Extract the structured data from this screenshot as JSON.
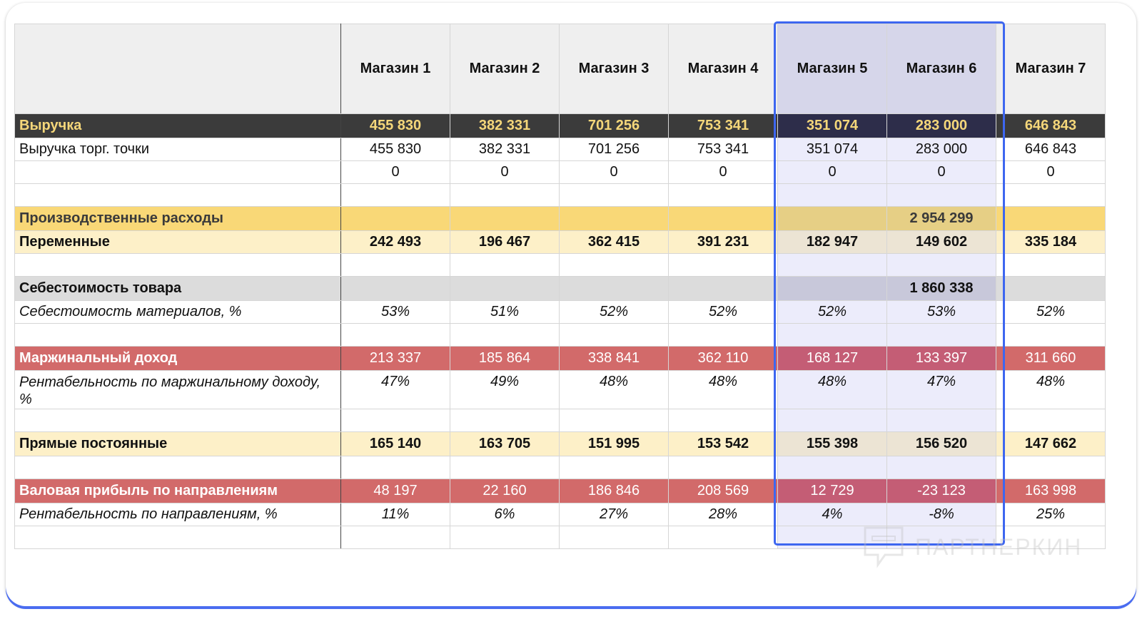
{
  "stores": [
    "Магазин 1",
    "Магазин 2",
    "Магазин 3",
    "Магазин 4",
    "Магазин 5",
    "Магазин 6",
    "Магазин 7"
  ],
  "rows": {
    "revenue": {
      "label": "Выручка",
      "values": [
        "455 830",
        "382 331",
        "701 256",
        "753 341",
        "351 074",
        "283 000",
        "646 843"
      ]
    },
    "store_revenue": {
      "label": "Выручка торг. точки",
      "values": [
        "455 830",
        "382 331",
        "701 256",
        "753 341",
        "351 074",
        "283 000",
        "646 843"
      ]
    },
    "zero": {
      "label": "",
      "values": [
        "0",
        "0",
        "0",
        "0",
        "0",
        "0",
        "0"
      ]
    },
    "production": {
      "label": "Производственные расходы",
      "total": "2 954 299"
    },
    "variable": {
      "label": "Переменные",
      "values": [
        "242 493",
        "196 467",
        "362 415",
        "391 231",
        "182 947",
        "149 602",
        "335 184"
      ]
    },
    "cogs": {
      "label": "Себестоимость товара",
      "total": "1 860 338"
    },
    "materials": {
      "label": "Себестоимость материалов, %",
      "values": [
        "53%",
        "51%",
        "52%",
        "52%",
        "52%",
        "53%",
        "52%"
      ]
    },
    "margin": {
      "label": "Маржинальный доход",
      "values": [
        "213 337",
        "185 864",
        "338 841",
        "362 110",
        "168 127",
        "133 397",
        "311 660"
      ]
    },
    "margin_pct": {
      "label": "Рентабельность по маржинальному доходу, %",
      "values": [
        "47%",
        "49%",
        "48%",
        "48%",
        "48%",
        "47%",
        "48%"
      ]
    },
    "direct": {
      "label": "Прямые постоянные",
      "values": [
        "165 140",
        "163 705",
        "151 995",
        "153 542",
        "155 398",
        "156 520",
        "147 662"
      ]
    },
    "gross": {
      "label": "Валовая прибыль по направлениям",
      "values": [
        "48 197",
        "22 160",
        "186 846",
        "208 569",
        "12 729",
        "-23 123",
        "163 998"
      ]
    },
    "gross_pct": {
      "label": "Рентабельность по направлениям, %",
      "values": [
        "11%",
        "6%",
        "27%",
        "28%",
        "4%",
        "-8%",
        "25%"
      ]
    }
  },
  "watermark": "ПАРТНЕРКИН",
  "colors": {
    "selection": "#3d66f0",
    "dark": "#3b3b3b",
    "gold": "#f9d877",
    "red": "#d26a6a"
  }
}
